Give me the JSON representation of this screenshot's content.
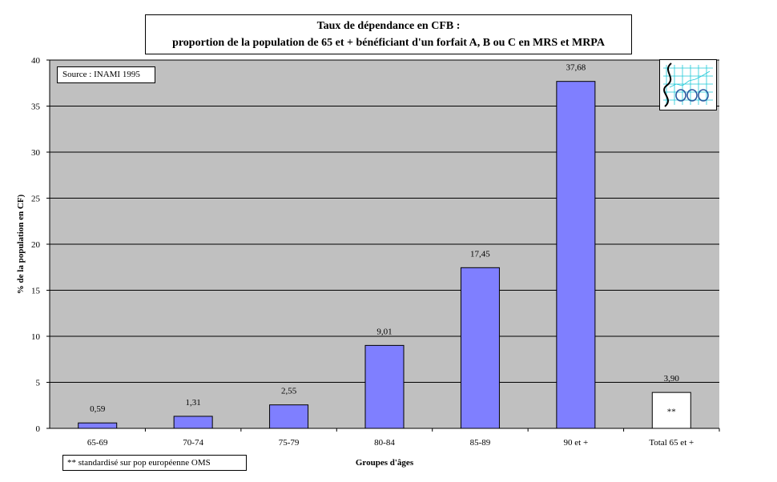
{
  "chart_data": {
    "type": "bar",
    "title": "Taux de dépendance  en CFB  :",
    "subtitle": "proportion de la population de 65 et + bénéficiant d'un forfait A, B ou C  en MRS et MRPA",
    "xlabel": "Groupes d'âges",
    "ylabel": "% de la population en CF)",
    "ylim": [
      0,
      40
    ],
    "yticks": [
      "0",
      "5",
      "10",
      "15",
      "20",
      "25",
      "30",
      "35",
      "40"
    ],
    "ytick_values": [
      0,
      5,
      10,
      15,
      20,
      25,
      30,
      35,
      40
    ],
    "grid": true,
    "categories": [
      "65-69",
      "70-74",
      "75-79",
      "80-84",
      "85-89",
      "90 et +",
      "Total 65 et +"
    ],
    "values": [
      0.59,
      1.31,
      2.55,
      9.01,
      17.45,
      37.68,
      3.9
    ],
    "data_labels": [
      "0,59",
      "1,31",
      "2,55",
      "9,01",
      "17,45",
      "37,68",
      "3,90"
    ],
    "bar_fills": [
      "#7f7fff",
      "#7f7fff",
      "#7f7fff",
      "#7f7fff",
      "#7f7fff",
      "#7f7fff",
      "#ffffff"
    ],
    "bar_inner_labels": [
      "",
      "",
      "",
      "",
      "",
      "",
      "**"
    ],
    "plot_background": "#c0c0c0"
  },
  "annotations": {
    "source": "Source : INAMI 1995",
    "footnote": "**  standardisé sur pop européenne OMS"
  }
}
